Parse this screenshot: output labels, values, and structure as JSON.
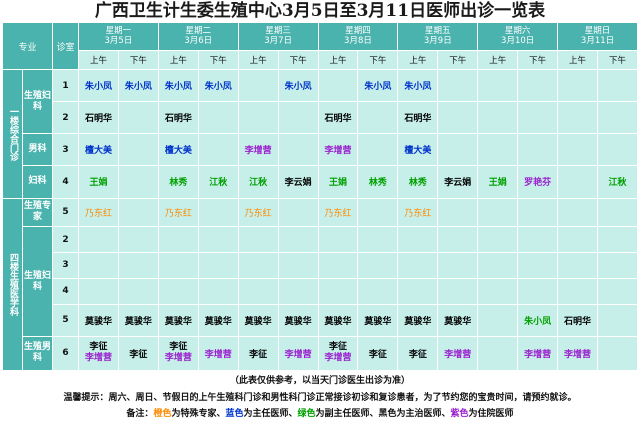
{
  "title": "广西卫生计生委生殖中心3月5日至3月11日医师出诊一览表",
  "header": {
    "dept_label": "专业",
    "room_label": "诊室",
    "days": [
      {
        "weekday": "星期一",
        "date": "3月5日"
      },
      {
        "weekday": "星期二",
        "date": "3月6日"
      },
      {
        "weekday": "星期三",
        "date": "3月7日"
      },
      {
        "weekday": "星期四",
        "date": "3月8日"
      },
      {
        "weekday": "星期五",
        "date": "3月9日"
      },
      {
        "weekday": "星期六",
        "date": "3月10日"
      },
      {
        "weekday": "星期日",
        "date": "3月11日"
      }
    ],
    "am": "上午",
    "pm": "下午"
  },
  "floors": {
    "floor1": "一楼综合门诊",
    "floor4": "四楼生殖医学科"
  },
  "depts": {
    "repro_gyn_1": "生殖妇科",
    "male_1": "男科",
    "gyn": "妇科",
    "repro_expert": "生殖专家",
    "repro_gyn_4": "生殖妇科",
    "repro_male_4": "生殖男科"
  },
  "rows": [
    {
      "room": "1",
      "cells": [
        [
          "朱小凤",
          "blue"
        ],
        [
          "朱小凤",
          "blue"
        ],
        [
          "朱小凤",
          "blue"
        ],
        [
          "朱小凤",
          "blue"
        ],
        [
          "",
          ""
        ],
        [
          "朱小凤",
          "blue"
        ],
        [
          "",
          ""
        ],
        [
          "朱小凤",
          "blue"
        ],
        [
          "朱小凤",
          "blue"
        ],
        [
          "",
          ""
        ],
        [
          "",
          ""
        ],
        [
          "",
          ""
        ],
        [
          "",
          ""
        ],
        [
          "",
          ""
        ]
      ]
    },
    {
      "room": "2",
      "cells": [
        [
          "石明华",
          "black"
        ],
        [
          "",
          ""
        ],
        [
          "石明华",
          "black"
        ],
        [
          "",
          ""
        ],
        [
          "",
          ""
        ],
        [
          "",
          ""
        ],
        [
          "石明华",
          "black"
        ],
        [
          "",
          ""
        ],
        [
          "石明华",
          "black"
        ],
        [
          "",
          ""
        ],
        [
          "",
          ""
        ],
        [
          "",
          ""
        ],
        [
          "",
          ""
        ],
        [
          "",
          ""
        ]
      ]
    },
    {
      "room": "3",
      "cells": [
        [
          "檀大美",
          "blue"
        ],
        [
          "",
          ""
        ],
        [
          "檀大美",
          "blue"
        ],
        [
          "",
          ""
        ],
        [
          "李增营",
          "purple"
        ],
        [
          "",
          ""
        ],
        [
          "李增营",
          "purple"
        ],
        [
          "",
          ""
        ],
        [
          "檀大美",
          "blue"
        ],
        [
          "",
          ""
        ],
        [
          "",
          ""
        ],
        [
          "",
          ""
        ],
        [
          "",
          ""
        ],
        [
          "",
          ""
        ]
      ]
    },
    {
      "room": "4",
      "cells": [
        [
          "王娟",
          "green"
        ],
        [
          "",
          ""
        ],
        [
          "林秀",
          "green"
        ],
        [
          "江秋",
          "green"
        ],
        [
          "江秋",
          "green"
        ],
        [
          "李云娟",
          "black"
        ],
        [
          "王娟",
          "green"
        ],
        [
          "林秀",
          "green"
        ],
        [
          "林秀",
          "green"
        ],
        [
          "李云娟",
          "black"
        ],
        [
          "王娟",
          "green"
        ],
        [
          "罗艳芬",
          "purple"
        ],
        [
          "",
          ""
        ],
        [
          "江秋",
          "green"
        ]
      ]
    },
    {
      "room": "5",
      "cells": [
        [
          "乃东红",
          "orange"
        ],
        [
          "",
          ""
        ],
        [
          "乃东红",
          "orange"
        ],
        [
          "",
          ""
        ],
        [
          "乃东红",
          "orange"
        ],
        [
          "",
          ""
        ],
        [
          "乃东红",
          "orange"
        ],
        [
          "",
          ""
        ],
        [
          "乃东红",
          "orange"
        ],
        [
          "",
          ""
        ],
        [
          "",
          ""
        ],
        [
          "",
          ""
        ],
        [
          "",
          ""
        ],
        [
          "",
          ""
        ]
      ]
    },
    {
      "room": "2",
      "cells": [
        [
          "",
          ""
        ],
        [
          "",
          ""
        ],
        [
          "",
          ""
        ],
        [
          "",
          ""
        ],
        [
          "",
          ""
        ],
        [
          "",
          ""
        ],
        [
          "",
          ""
        ],
        [
          "",
          ""
        ],
        [
          "",
          ""
        ],
        [
          "",
          ""
        ],
        [
          "",
          ""
        ],
        [
          "",
          ""
        ],
        [
          "",
          ""
        ],
        [
          "",
          ""
        ]
      ]
    },
    {
      "room": "3",
      "cells": [
        [
          "",
          ""
        ],
        [
          "",
          ""
        ],
        [
          "",
          ""
        ],
        [
          "",
          ""
        ],
        [
          "",
          ""
        ],
        [
          "",
          ""
        ],
        [
          "",
          ""
        ],
        [
          "",
          ""
        ],
        [
          "",
          ""
        ],
        [
          "",
          ""
        ],
        [
          "",
          ""
        ],
        [
          "",
          ""
        ],
        [
          "",
          ""
        ],
        [
          "",
          ""
        ]
      ]
    },
    {
      "room": "4",
      "cells": [
        [
          "",
          ""
        ],
        [
          "",
          ""
        ],
        [
          "",
          ""
        ],
        [
          "",
          ""
        ],
        [
          "",
          ""
        ],
        [
          "",
          ""
        ],
        [
          "",
          ""
        ],
        [
          "",
          ""
        ],
        [
          "",
          ""
        ],
        [
          "",
          ""
        ],
        [
          "",
          ""
        ],
        [
          "",
          ""
        ],
        [
          "",
          ""
        ],
        [
          "",
          ""
        ]
      ]
    },
    {
      "room": "5",
      "cells": [
        [
          "莫骏华",
          "black"
        ],
        [
          "莫骏华",
          "black"
        ],
        [
          "莫骏华",
          "black"
        ],
        [
          "莫骏华",
          "black"
        ],
        [
          "莫骏华",
          "black"
        ],
        [
          "莫骏华",
          "black"
        ],
        [
          "莫骏华",
          "black"
        ],
        [
          "莫骏华",
          "black"
        ],
        [
          "莫骏华",
          "black"
        ],
        [
          "莫骏华",
          "black"
        ],
        [
          "",
          ""
        ],
        [
          "朱小凤",
          "green"
        ],
        [
          "石明华",
          "black"
        ],
        [
          "",
          ""
        ]
      ]
    },
    {
      "room": "6",
      "cells": [
        [
          "李征\n李增营",
          "two"
        ],
        [
          "李征",
          "black"
        ],
        [
          "李征\n李增营",
          "two"
        ],
        [
          "李增营",
          "purple"
        ],
        [
          "李征",
          "black"
        ],
        [
          "李增营",
          "purple"
        ],
        [
          "李征\n李增营",
          "two"
        ],
        [
          "李征",
          "black"
        ],
        [
          "李征",
          "black"
        ],
        [
          "李增营",
          "purple"
        ],
        [
          "",
          ""
        ],
        [
          "李增营",
          "purple"
        ],
        [
          "李增营",
          "purple"
        ],
        [
          "",
          ""
        ]
      ]
    }
  ],
  "notice": "（此表仅供参考，以当天门诊医生出诊为准）",
  "tip": "温馨提示：周六、周日、节假日的上午生殖科门诊和男性科门诊正常接诊初诊和复诊患者，为了节约您的宝贵时间，请预约就诊。",
  "legend": {
    "prefix": "备注：",
    "orange": "橙色",
    "orange_text": "为特殊专家、",
    "blue": "蓝色",
    "blue_text": "为主任医师、",
    "green": "绿色",
    "green_text": "为副主任医师、黑色为主治医师、",
    "purple": "紫色",
    "purple_text": "为住院医师"
  },
  "colors": {
    "header_bg": "#4bb3ae",
    "cell_bg": "#c6efe9",
    "orange": "#ff8a00",
    "blue": "#0033cc",
    "green": "#00a000",
    "purple": "#9b1fcf",
    "black": "#000000"
  }
}
